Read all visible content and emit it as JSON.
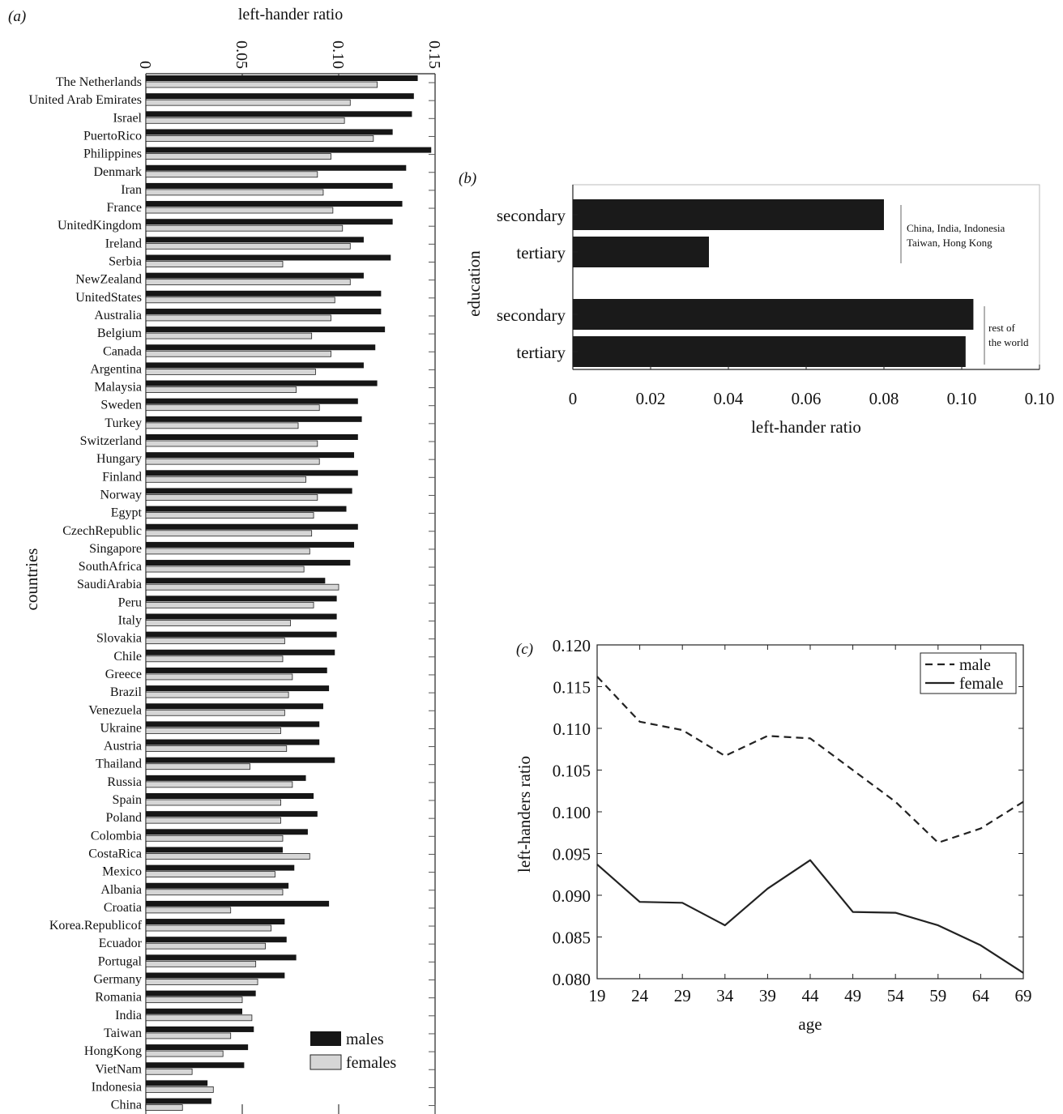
{
  "chart_data": [
    {
      "panel": "(a)",
      "type": "bar",
      "orientation": "horizontal",
      "xlabel": "left-hander ratio",
      "ylabel": "countries",
      "xlim": [
        0,
        0.15
      ],
      "xticks": [
        "0",
        "0.05",
        "0.10",
        "0.15"
      ],
      "legend": {
        "position": "bottom-right",
        "entries": [
          "males",
          "females"
        ]
      },
      "categories": [
        "The Netherlands",
        "United Arab Emirates",
        "Israel",
        "PuertoRico",
        "Philippines",
        "Denmark",
        "Iran",
        "France",
        "UnitedKingdom",
        "Ireland",
        "Serbia",
        "NewZealand",
        "UnitedStates",
        "Australia",
        "Belgium",
        "Canada",
        "Argentina",
        "Malaysia",
        "Sweden",
        "Turkey",
        "Switzerland",
        "Hungary",
        "Finland",
        "Norway",
        "Egypt",
        "CzechRepublic",
        "Singapore",
        "SouthAfrica",
        "SaudiArabia",
        "Peru",
        "Italy",
        "Slovakia",
        "Chile",
        "Greece",
        "Brazil",
        "Venezuela",
        "Ukraine",
        "Austria",
        "Thailand",
        "Russia",
        "Spain",
        "Poland",
        "Colombia",
        "CostaRica",
        "Mexico",
        "Albania",
        "Croatia",
        "Korea.Republicof",
        "Ecuador",
        "Portugal",
        "Germany",
        "Romania",
        "India",
        "Taiwan",
        "HongKong",
        "VietNam",
        "Indonesia",
        "China"
      ],
      "series": [
        {
          "name": "males",
          "color": "#161616",
          "values": [
            0.141,
            0.139,
            0.138,
            0.128,
            0.148,
            0.135,
            0.128,
            0.133,
            0.128,
            0.113,
            0.127,
            0.113,
            0.122,
            0.122,
            0.124,
            0.119,
            0.113,
            0.12,
            0.11,
            0.112,
            0.11,
            0.108,
            0.11,
            0.107,
            0.104,
            0.11,
            0.108,
            0.106,
            0.093,
            0.099,
            0.099,
            0.099,
            0.098,
            0.094,
            0.095,
            0.092,
            0.09,
            0.09,
            0.098,
            0.083,
            0.087,
            0.089,
            0.084,
            0.071,
            0.077,
            0.074,
            0.095,
            0.072,
            0.073,
            0.078,
            0.072,
            0.057,
            0.05,
            0.056,
            0.053,
            0.051,
            0.032,
            0.034
          ]
        },
        {
          "name": "females",
          "color": "#d6d6d6",
          "values": [
            0.12,
            0.106,
            0.103,
            0.118,
            0.096,
            0.089,
            0.092,
            0.097,
            0.102,
            0.106,
            0.071,
            0.106,
            0.098,
            0.096,
            0.086,
            0.096,
            0.088,
            0.078,
            0.09,
            0.079,
            0.089,
            0.09,
            0.083,
            0.089,
            0.087,
            0.086,
            0.085,
            0.082,
            0.1,
            0.087,
            0.075,
            0.072,
            0.071,
            0.076,
            0.074,
            0.072,
            0.07,
            0.073,
            0.054,
            0.076,
            0.07,
            0.07,
            0.071,
            0.085,
            0.067,
            0.071,
            0.044,
            0.065,
            0.062,
            0.057,
            0.058,
            0.05,
            0.055,
            0.044,
            0.04,
            0.024,
            0.035,
            0.019
          ]
        }
      ]
    },
    {
      "panel": "(b)",
      "type": "bar",
      "orientation": "horizontal",
      "xlabel": "left-hander ratio",
      "ylabel": "education",
      "xlim": [
        0,
        0.12
      ],
      "xticks": [
        "0",
        "0.02",
        "0.04",
        "0.06",
        "0.08",
        "0.10",
        "0.10"
      ],
      "groups": [
        {
          "label": "China, India, Indonesia Taiwan, Hong Kong",
          "label_lines": [
            "China, India, Indonesia",
            "Taiwan, Hong Kong"
          ],
          "categories": [
            "secondary",
            "tertiary"
          ],
          "values": [
            0.08,
            0.035
          ]
        },
        {
          "label": "rest of the world",
          "label_lines": [
            "rest of",
            "the world"
          ],
          "categories": [
            "secondary",
            "tertiary"
          ],
          "values": [
            0.103,
            0.101
          ]
        }
      ]
    },
    {
      "panel": "(c)",
      "type": "line",
      "xlabel": "age",
      "ylabel": "left-handers ratio",
      "ylim": [
        0.08,
        0.12
      ],
      "xticks": [
        "19",
        "24",
        "29",
        "34",
        "39",
        "44",
        "49",
        "54",
        "59",
        "64",
        "69"
      ],
      "yticks": [
        "0.080",
        "0.085",
        "0.090",
        "0.095",
        "0.100",
        "0.105",
        "0.110",
        "0.115",
        "0.120"
      ],
      "legend": {
        "position": "top-right"
      },
      "x": [
        19,
        24,
        29,
        34,
        39,
        44,
        49,
        54,
        59,
        64,
        69
      ],
      "series": [
        {
          "name": "male",
          "style": "dashed",
          "values": [
            0.1162,
            0.1108,
            0.1098,
            0.1067,
            0.1091,
            0.1088,
            0.105,
            0.1012,
            0.0963,
            0.098,
            0.1012
          ]
        },
        {
          "name": "female",
          "style": "solid",
          "values": [
            0.0937,
            0.0892,
            0.0891,
            0.0864,
            0.0908,
            0.0942,
            0.088,
            0.0879,
            0.0864,
            0.084,
            0.0807
          ]
        }
      ]
    }
  ]
}
